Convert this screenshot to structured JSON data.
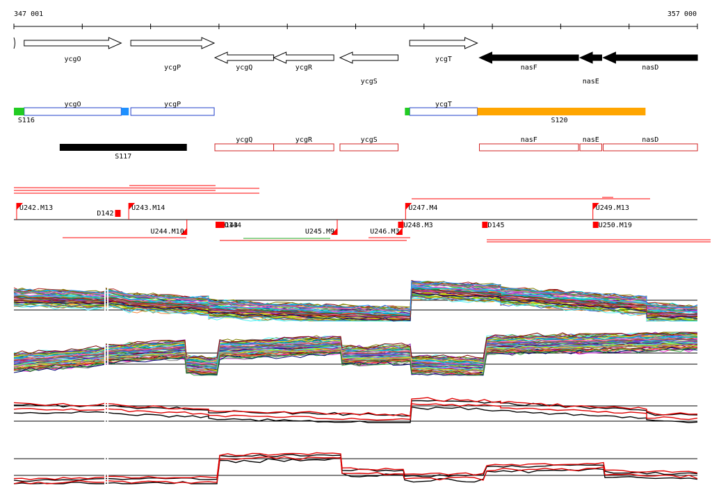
{
  "ruler": {
    "start_label": "347 001",
    "end_label": "357 000",
    "start": 347001,
    "end": 357000
  },
  "genes": [
    {
      "label": "ycgO",
      "start": 347151,
      "end": 348571,
      "strand": "+",
      "row": 0
    },
    {
      "label": "ycgP",
      "start": 348711,
      "end": 349931,
      "strand": "+",
      "row": 1
    },
    {
      "label": "ycgQ",
      "start": 349941,
      "end": 350801,
      "strand": "-",
      "row": 1
    },
    {
      "label": "ycgR",
      "start": 350801,
      "end": 351681,
      "strand": "-",
      "row": 1
    },
    {
      "label": "ycgS",
      "start": 351771,
      "end": 352621,
      "strand": "-",
      "row": 2
    },
    {
      "label": "ycgT",
      "start": 352791,
      "end": 353781,
      "strand": "+",
      "row": 0
    },
    {
      "label": "nasF",
      "start": 353811,
      "end": 355261,
      "strand": "-",
      "row": 1,
      "filled": true
    },
    {
      "label": "nasE",
      "start": 355281,
      "end": 355601,
      "strand": "-",
      "row": 2,
      "filled": true
    },
    {
      "label": "nasD",
      "start": 355621,
      "end": 357001,
      "strand": "-",
      "row": 1,
      "filled": true
    }
  ],
  "segments_row1": {
    "boxes": [
      {
        "label": "ycgO",
        "start": 347151,
        "end": 348571
      },
      {
        "label": "ycgP",
        "start": 348711,
        "end": 349931
      },
      {
        "label": "ycgT",
        "start": 352791,
        "end": 353781
      }
    ],
    "marks": [
      {
        "start": 347001,
        "end": 347151,
        "color": "#22cc22"
      },
      {
        "start": 348571,
        "end": 348681,
        "color": "#1e90ff"
      },
      {
        "start": 352721,
        "end": 352791,
        "color": "#22cc22"
      }
    ],
    "bars": [
      {
        "start": 353781,
        "end": 356241,
        "color": "#ffa500"
      }
    ],
    "labels": [
      {
        "text": "S116",
        "pos": 347101
      },
      {
        "text": "S120",
        "pos": 354981
      }
    ]
  },
  "segments_row2": {
    "bars": [
      {
        "label": "S117",
        "start": 347671,
        "end": 349531,
        "color": "#000000"
      }
    ],
    "boxes": [
      {
        "label": "ycgQ",
        "start": 349941,
        "end": 350801
      },
      {
        "label": "ycgR",
        "start": 350801,
        "end": 351681
      },
      {
        "label": "ycgS",
        "start": 351771,
        "end": 352621
      },
      {
        "label": "nasF",
        "start": 353811,
        "end": 355261
      },
      {
        "label": "nasE",
        "start": 355281,
        "end": 355601
      },
      {
        "label": "nasD",
        "start": 355621,
        "end": 357001
      }
    ]
  },
  "promoters_top": [
    {
      "label": "U242.M13",
      "pos": 347041
    },
    {
      "label": "U243.M14",
      "pos": 348681
    },
    {
      "label": "U247.M4",
      "pos": 352731
    },
    {
      "label": "U249.M13",
      "pos": 355471
    }
  ],
  "promoters_bottom": [
    {
      "label": "U244.M10",
      "pos": 349531
    },
    {
      "label": "U245.M9",
      "pos": 351731
    },
    {
      "label": "U246.M3",
      "pos": 352681
    }
  ],
  "terminators": [
    {
      "label": "D142",
      "pos": 348481,
      "side": "top"
    },
    {
      "label": "D143",
      "pos": 349951,
      "side": "bottom"
    },
    {
      "label": "D144",
      "pos": 350001,
      "side": "bottom"
    },
    {
      "label": "U248.M3",
      "pos": 352621,
      "side": "bottom"
    },
    {
      "label": "D145",
      "pos": 353851,
      "side": "bottom"
    },
    {
      "label": "U250.M19",
      "pos": 355471,
      "side": "bottom"
    }
  ],
  "colors": {
    "gene_filled": "#000000",
    "box_blue": "#1e3cc8",
    "box_red": "#d02020",
    "promoter": "#ff0000",
    "profile_red": "#e00000"
  }
}
